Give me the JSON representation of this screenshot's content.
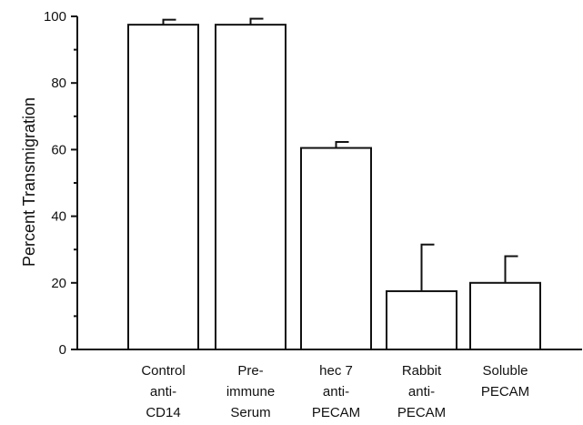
{
  "chart_data": {
    "type": "bar",
    "title": "",
    "xlabel": "",
    "ylabel": "Percent Transmigration",
    "ylim": [
      0,
      100
    ],
    "yticks": [
      0,
      20,
      40,
      60,
      80,
      100
    ],
    "grid": false,
    "categories": [
      [
        "Control",
        "anti-",
        "CD14"
      ],
      [
        "Pre-",
        "immune",
        "Serum"
      ],
      [
        "hec 7",
        "anti-",
        "PECAM"
      ],
      [
        "Rabbit",
        "anti-",
        "PECAM"
      ],
      [
        "Soluble",
        "PECAM"
      ]
    ],
    "values": [
      97.5,
      97.5,
      60.5,
      17.5,
      20
    ],
    "error_upper": [
      1.5,
      1.8,
      1.8,
      14,
      8
    ],
    "colors": {
      "bar_fill": "#ffffff",
      "stroke": "#111111"
    }
  }
}
